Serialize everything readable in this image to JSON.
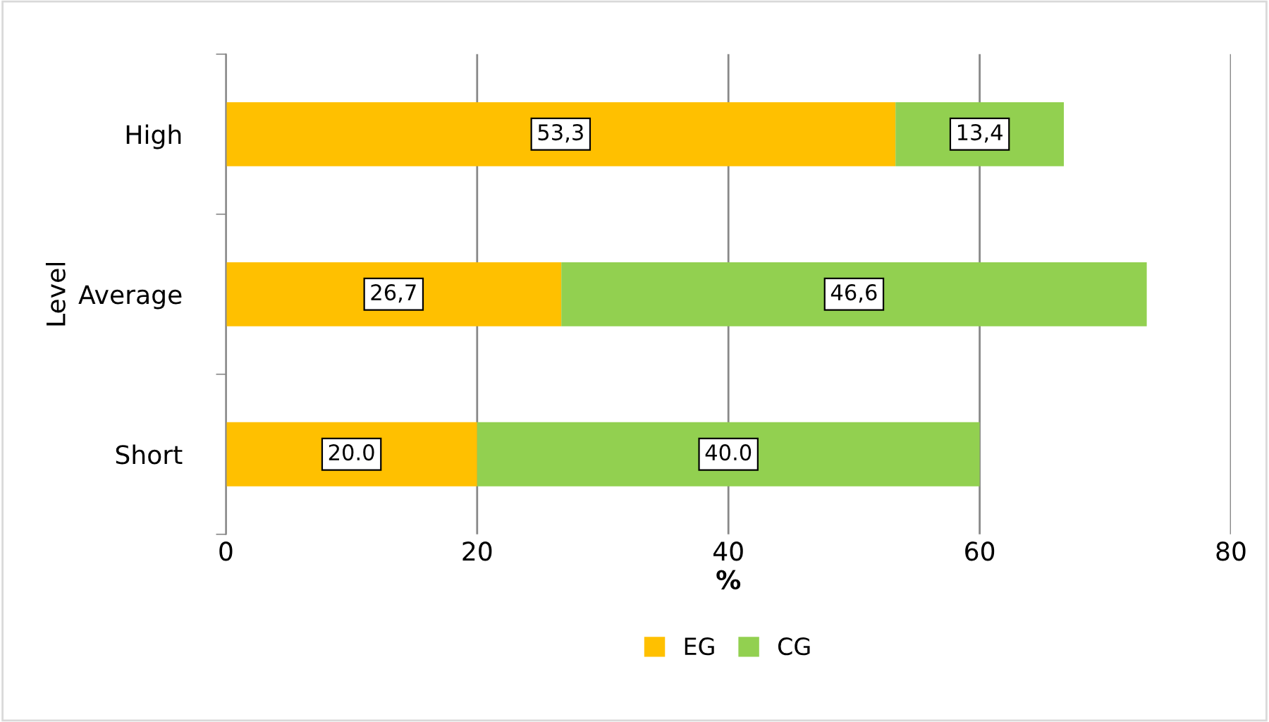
{
  "chart_data": {
    "type": "bar",
    "orientation": "horizontal",
    "stacked": true,
    "xlabel": "%",
    "ylabel": "Level",
    "categories": [
      "High",
      "Average",
      "Short"
    ],
    "series": [
      {
        "name": "EG",
        "color": "#ffc000",
        "values": [
          53.3,
          26.7,
          20.0
        ],
        "value_labels": [
          "53,3",
          "26,7",
          "20.0"
        ]
      },
      {
        "name": "CG",
        "color": "#92d050",
        "values": [
          13.4,
          46.6,
          40.0
        ],
        "value_labels": [
          "13,4",
          "46,6",
          "40.0"
        ]
      }
    ],
    "xlim": [
      0,
      80
    ],
    "xticks": [
      0,
      20,
      40,
      60,
      80
    ],
    "grid": "x",
    "legend": "bottom"
  }
}
